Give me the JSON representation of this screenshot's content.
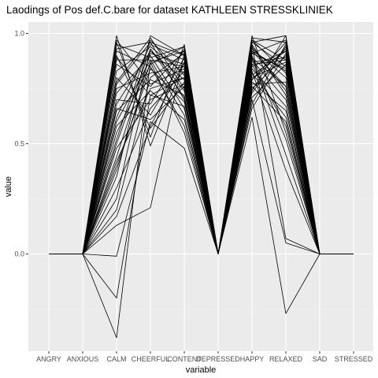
{
  "chart_data": {
    "type": "line",
    "title": "Laodings of Pos def.C.bare for dataset KATHLEEN STRESSKLINIEK",
    "xlabel": "variable",
    "ylabel": "value",
    "categories": [
      "ANGRY",
      "ANXIOUS",
      "CALM",
      "CHEERFUL",
      "CONTENT",
      "DEPRESSED",
      "HAPPY",
      "RELAXED",
      "SAD",
      "STRESSED"
    ],
    "ylim": [
      -0.44,
      1.05
    ],
    "yticks": [
      0.0,
      0.5,
      1.0
    ],
    "ytick_labels": [
      "0.0",
      "0.5",
      "1.0"
    ],
    "grid": true,
    "panel_background": "#ebebeb",
    "line_color": "#000000",
    "series": [
      {
        "values": [
          0,
          0,
          -0.38,
          0.87,
          0.55,
          0,
          0.62,
          -0.27,
          0,
          0
        ]
      },
      {
        "values": [
          0,
          0,
          -0.2,
          0.72,
          0.8,
          0,
          0.7,
          0.05,
          0,
          0
        ]
      },
      {
        "values": [
          0,
          0,
          -0.01,
          0.6,
          0.48,
          0,
          0.95,
          0.07,
          0,
          0
        ]
      },
      {
        "values": [
          0,
          0,
          0.13,
          0.21,
          0.91,
          0,
          0.81,
          0.92,
          0,
          0
        ]
      },
      {
        "values": [
          0,
          0,
          0.99,
          0.49,
          0.87,
          0,
          0.76,
          0.6,
          0,
          0
        ]
      },
      {
        "values": [
          0,
          0,
          0.96,
          0.53,
          0.95,
          0,
          0.98,
          0.96,
          0,
          0
        ]
      },
      {
        "values": [
          0,
          0,
          0.93,
          0.96,
          0.7,
          0,
          0.92,
          0.83,
          0,
          0
        ]
      },
      {
        "values": [
          0,
          0,
          0.9,
          0.57,
          0.78,
          0,
          0.89,
          0.45,
          0,
          0
        ]
      },
      {
        "values": [
          0,
          0,
          0.88,
          0.88,
          0.63,
          0,
          0.74,
          0.99,
          0,
          0
        ]
      },
      {
        "values": [
          0,
          0,
          0.86,
          0.76,
          0.92,
          0,
          0.86,
          0.88,
          0,
          0
        ]
      },
      {
        "values": [
          0,
          0,
          0.83,
          0.94,
          0.82,
          0,
          0.95,
          0.72,
          0,
          0
        ]
      },
      {
        "values": [
          0,
          0,
          0.8,
          0.63,
          0.89,
          0,
          0.66,
          0.91,
          0,
          0
        ]
      },
      {
        "values": [
          0,
          0,
          0.78,
          0.98,
          0.75,
          0,
          0.83,
          0.38,
          0,
          0
        ]
      },
      {
        "values": [
          0,
          0,
          0.75,
          0.82,
          0.85,
          0,
          0.93,
          0.8,
          0,
          0
        ]
      },
      {
        "values": [
          0,
          0,
          0.73,
          0.9,
          0.66,
          0,
          0.79,
          0.93,
          0,
          0
        ]
      },
      {
        "values": [
          0,
          0,
          0.7,
          0.68,
          0.93,
          0,
          0.99,
          0.55,
          0,
          0
        ]
      },
      {
        "values": [
          0,
          0,
          0.68,
          0.92,
          0.79,
          0,
          0.71,
          0.86,
          0,
          0
        ]
      },
      {
        "values": [
          0,
          0,
          0.65,
          0.79,
          0.72,
          0,
          0.91,
          0.97,
          0,
          0
        ]
      },
      {
        "values": [
          0,
          0,
          0.62,
          0.95,
          0.88,
          0,
          0.84,
          0.67,
          0,
          0
        ]
      },
      {
        "values": [
          0,
          0,
          0.58,
          0.74,
          0.61,
          0,
          0.96,
          0.85,
          0,
          0
        ]
      },
      {
        "values": [
          0,
          0,
          0.55,
          0.86,
          0.94,
          0,
          0.77,
          0.78,
          0,
          0
        ]
      },
      {
        "values": [
          0,
          0,
          0.52,
          0.97,
          0.81,
          0,
          0.9,
          0.52,
          0,
          0
        ]
      },
      {
        "values": [
          0,
          0,
          0.48,
          0.7,
          0.77,
          0,
          0.87,
          0.89,
          0,
          0
        ]
      },
      {
        "values": [
          0,
          0,
          0.44,
          0.91,
          0.86,
          0,
          0.68,
          0.95,
          0,
          0
        ]
      },
      {
        "values": [
          0,
          0,
          0.4,
          0.84,
          0.69,
          0,
          0.94,
          0.74,
          0,
          0
        ]
      },
      {
        "values": [
          0,
          0,
          0.35,
          0.99,
          0.9,
          0,
          0.82,
          0.62,
          0,
          0
        ]
      },
      {
        "values": [
          0,
          0,
          0.3,
          0.66,
          0.83,
          0,
          0.97,
          0.82,
          0,
          0
        ]
      },
      {
        "values": [
          0,
          0,
          0.25,
          0.93,
          0.74,
          0,
          0.73,
          0.94,
          0,
          0
        ]
      },
      {
        "values": [
          0,
          0,
          0.2,
          0.8,
          0.91,
          0,
          0.88,
          0.7,
          0,
          0
        ]
      },
      {
        "values": [
          0,
          0,
          0.17,
          0.58,
          0.87,
          0,
          0.8,
          0.87,
          0,
          0
        ]
      },
      {
        "values": [
          0,
          0,
          0.92,
          0.85,
          0.58,
          0,
          0.92,
          0.76,
          0,
          0
        ]
      },
      {
        "values": [
          0,
          0,
          0.97,
          0.77,
          0.84,
          0,
          0.85,
          0.92,
          0,
          0
        ]
      },
      {
        "values": [
          0,
          0,
          0.95,
          0.89,
          0.94,
          0,
          0.96,
          0.99,
          0,
          0
        ]
      },
      {
        "values": [
          0,
          0,
          0.89,
          0.72,
          0.67,
          0,
          0.78,
          0.65,
          0,
          0
        ]
      },
      {
        "values": [
          0,
          0,
          0.77,
          0.96,
          0.9,
          0,
          0.91,
          0.84,
          0,
          0
        ]
      },
      {
        "values": [
          0,
          0,
          0.66,
          0.61,
          0.76,
          0,
          0.75,
          0.9,
          0,
          0
        ]
      },
      {
        "values": [
          0,
          0,
          0.6,
          0.88,
          0.85,
          0,
          0.89,
          0.76,
          0,
          0
        ]
      },
      {
        "values": [
          0,
          0,
          0.5,
          0.93,
          0.71,
          0,
          0.97,
          0.88,
          0,
          0
        ]
      },
      {
        "values": [
          0,
          0,
          0.42,
          0.75,
          0.8,
          0,
          0.86,
          0.58,
          0,
          0
        ]
      },
      {
        "values": [
          0,
          0,
          0.38,
          0.87,
          0.92,
          0,
          0.79,
          0.96,
          0,
          0
        ]
      }
    ]
  }
}
